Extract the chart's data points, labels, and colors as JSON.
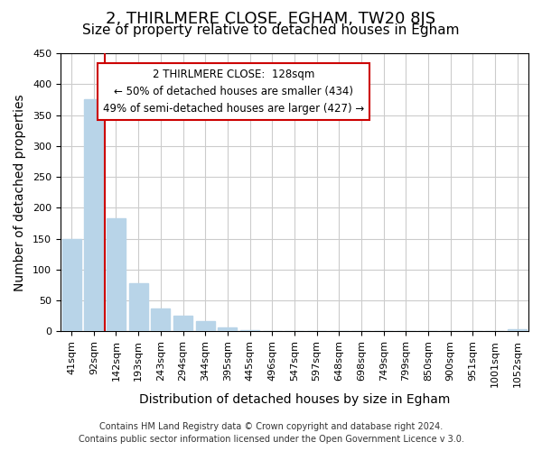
{
  "title": "2, THIRLMERE CLOSE, EGHAM, TW20 8JS",
  "subtitle": "Size of property relative to detached houses in Egham",
  "xlabel": "Distribution of detached houses by size in Egham",
  "ylabel": "Number of detached properties",
  "bar_labels": [
    "41sqm",
    "92sqm",
    "142sqm",
    "193sqm",
    "243sqm",
    "294sqm",
    "344sqm",
    "395sqm",
    "445sqm",
    "496sqm",
    "547sqm",
    "597sqm",
    "648sqm",
    "698sqm",
    "749sqm",
    "799sqm",
    "850sqm",
    "900sqm",
    "951sqm",
    "1001sqm",
    "1052sqm"
  ],
  "bar_values": [
    150,
    375,
    183,
    78,
    37,
    25,
    16,
    7,
    2,
    0,
    0,
    0,
    0,
    0,
    0,
    0,
    0,
    0,
    0,
    0,
    3
  ],
  "bar_color": "#b8d4e8",
  "vline_x": 1.5,
  "vline_color": "#cc0000",
  "ylim": [
    0,
    450
  ],
  "yticks": [
    0,
    50,
    100,
    150,
    200,
    250,
    300,
    350,
    400,
    450
  ],
  "annotation_title": "2 THIRLMERE CLOSE:  128sqm",
  "annotation_line1": "← 50% of detached houses are smaller (434)",
  "annotation_line2": "49% of semi-detached houses are larger (427) →",
  "annotation_box_color": "#ffffff",
  "annotation_box_edge": "#cc0000",
  "footer_line1": "Contains HM Land Registry data © Crown copyright and database right 2024.",
  "footer_line2": "Contains public sector information licensed under the Open Government Licence v 3.0.",
  "background_color": "#ffffff",
  "plot_bg_color": "#ffffff",
  "grid_color": "#cccccc",
  "title_fontsize": 13,
  "subtitle_fontsize": 11,
  "axis_label_fontsize": 10,
  "tick_fontsize": 8,
  "footer_fontsize": 7
}
